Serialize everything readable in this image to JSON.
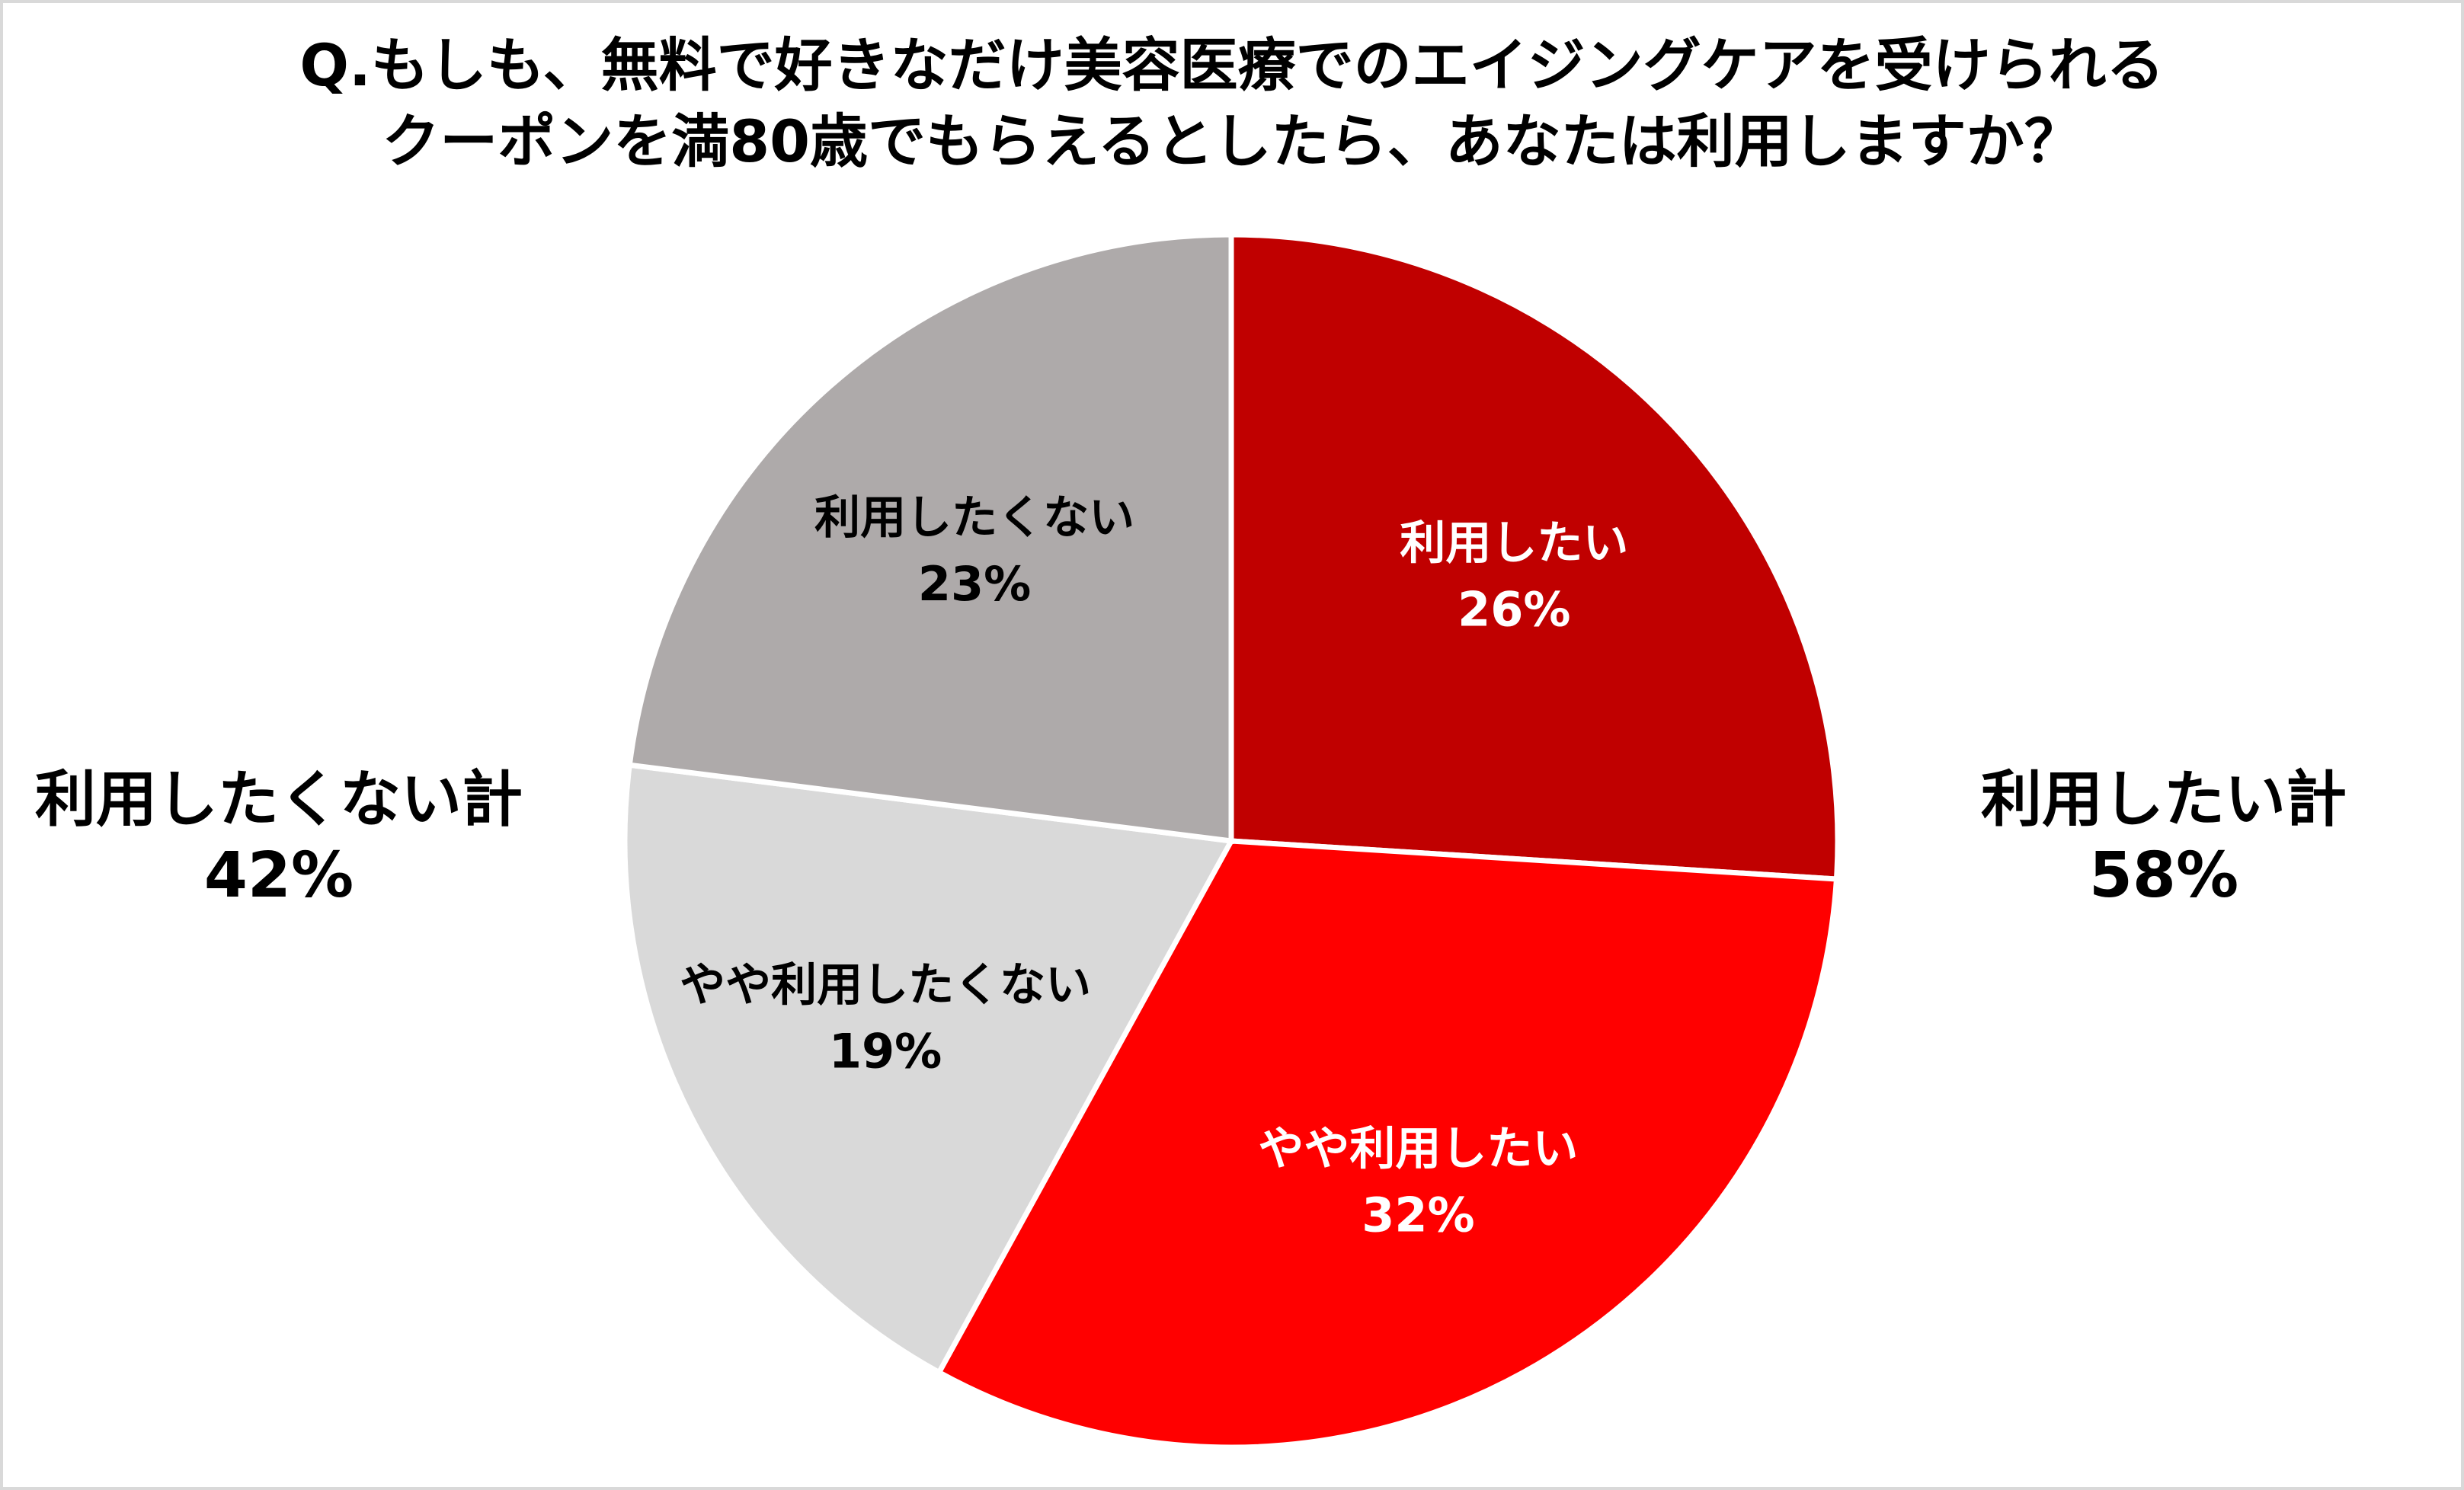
{
  "chart_data": {
    "type": "pie",
    "title_lines": [
      "Q.もしも、無料で好きなだけ美容医療でのエイジングケアを受けられる",
      "クーポンを満80歳でもらえるとしたら、あなたは利用しますか？"
    ],
    "slices": [
      {
        "label": "利用したい",
        "value": 26,
        "value_label": "26%",
        "color": "#C00000",
        "text_color": "#ffffff"
      },
      {
        "label": "やや利用したい",
        "value": 32,
        "value_label": "32%",
        "color": "#FF0000",
        "text_color": "#ffffff"
      },
      {
        "label": "やや利用したくない",
        "value": 19,
        "value_label": "19%",
        "color": "#D9D9D9",
        "text_color": "#000000"
      },
      {
        "label": "利用したくない",
        "value": 23,
        "value_label": "23%",
        "color": "#AEAAAA",
        "text_color": "#000000"
      }
    ],
    "start_angle_deg": 0,
    "direction": "clockwise",
    "totals": {
      "positive": {
        "label": "利用したい計",
        "value_label": "58%"
      },
      "negative": {
        "label": "利用したくない計",
        "value_label": "42%"
      }
    }
  }
}
